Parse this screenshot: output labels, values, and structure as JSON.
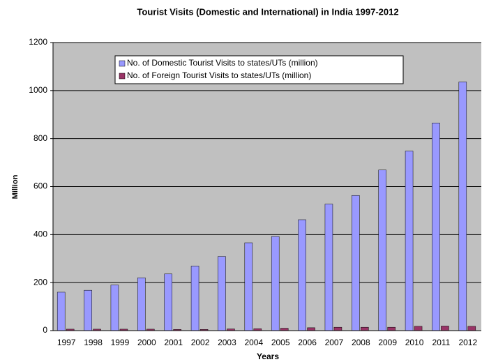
{
  "chart_data": {
    "type": "bar",
    "title": "Tourist Visits (Domestic and International) in India 1997-2012",
    "xlabel": "Years",
    "ylabel": "Million",
    "categories": [
      "1997",
      "1998",
      "1999",
      "2000",
      "2001",
      "2002",
      "2003",
      "2004",
      "2005",
      "2006",
      "2007",
      "2008",
      "2009",
      "2010",
      "2011",
      "2012"
    ],
    "series": [
      {
        "name": "No. of Domestic Tourist Visits to states/UTs (million)",
        "color": "#9999ff",
        "values": [
          160,
          168,
          190,
          220,
          236,
          269,
          309,
          366,
          392,
          462,
          527,
          563,
          669,
          748,
          865,
          1036
        ]
      },
      {
        "name": "No. of Foreign Tourist Visits to states/UTs (million)",
        "color": "#993366",
        "values": [
          6,
          6,
          6,
          6,
          5,
          5,
          7,
          8,
          10,
          12,
          14,
          14,
          14,
          18,
          19,
          18
        ]
      }
    ],
    "ylim": [
      0,
      1200
    ],
    "yticks": [
      0,
      200,
      400,
      600,
      800,
      1000,
      1200
    ],
    "grid": true
  }
}
